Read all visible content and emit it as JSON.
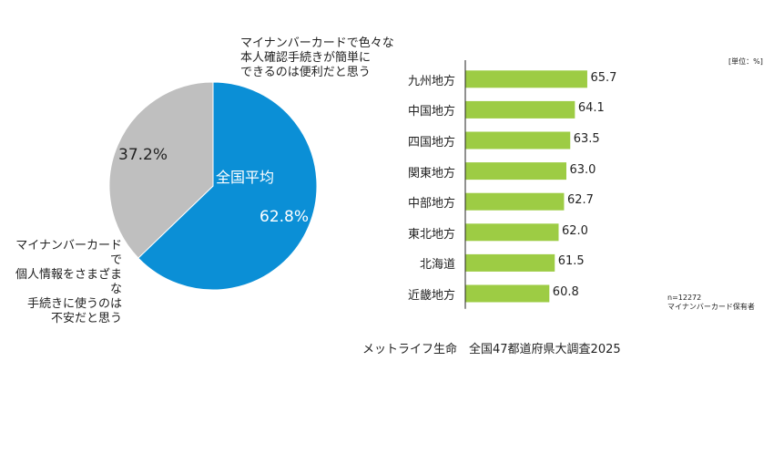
{
  "chart_data": [
    {
      "type": "pie",
      "title": "",
      "center_label": "全国平均",
      "slices": [
        {
          "label": "マイナンバーカードで色々な本人確認手続きが簡単にできるのは便利だと思う",
          "value": 62.8,
          "display": "62.8%",
          "color": "#0b8fd6"
        },
        {
          "label": "マイナンバーカードで個人情報をさまざまな手続きに使うのは不安だと思う",
          "value": 37.2,
          "display": "37.2%",
          "color": "#bfbfbf"
        }
      ],
      "annotations": {
        "positive_lines": [
          "マイナンバーカードで色々な",
          "本人確認手続きが簡単に",
          "できるのは便利だと思う"
        ],
        "negative_lines": [
          "マイナンバーカードで",
          "個人情報をさまざまな",
          "手続きに使うのは",
          "不安だと思う"
        ]
      }
    },
    {
      "type": "bar",
      "orientation": "horizontal",
      "unit_label": "[単位：%]",
      "categories": [
        "九州地方",
        "中国地方",
        "四国地方",
        "関東地方",
        "中部地方",
        "東北地方",
        "北海道",
        "近畿地方"
      ],
      "values": [
        65.7,
        64.1,
        63.5,
        63.0,
        62.7,
        62.0,
        61.5,
        60.8
      ],
      "value_labels": [
        "65.7",
        "64.1",
        "63.5",
        "63.0",
        "62.7",
        "62.0",
        "61.5",
        "60.8"
      ],
      "bar_color": "#9dcc44",
      "axis_min": 50,
      "note_lines": [
        "n=12272",
        "マイナンバーカード保有者"
      ]
    }
  ],
  "footer": {
    "source": "メットライフ生命　全国47都道府県大調査2025"
  }
}
